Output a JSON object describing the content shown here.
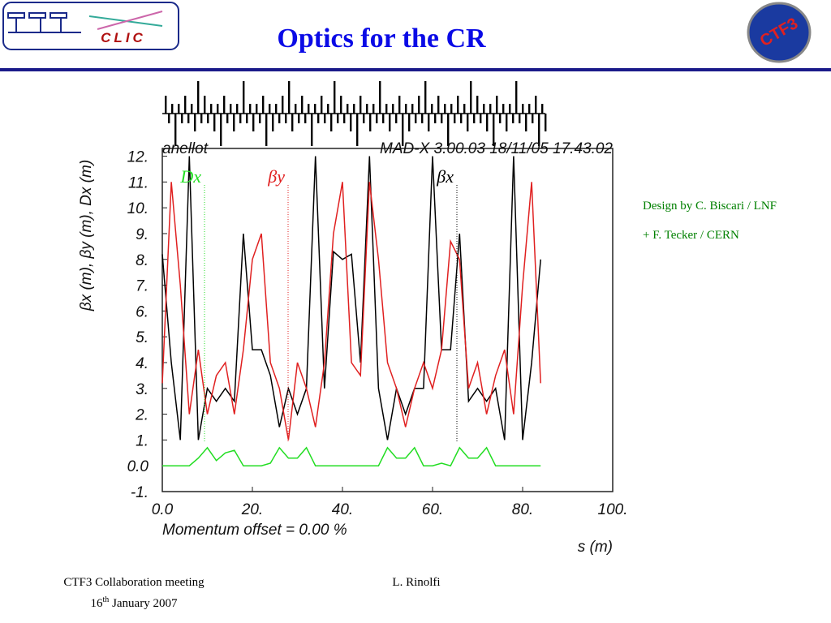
{
  "header": {
    "title": "Optics for the CR",
    "logo_left": "CLIC",
    "logo_right": "CTF3"
  },
  "notes": [
    "Design by C. Biscari / LNF",
    "+ F. Tecker / CERN"
  ],
  "footer": {
    "meeting": "CTF3 Collaboration meeting",
    "date_day": "16",
    "date_sup": "th",
    "date_rest": " January 2007",
    "author": "L. Rinolfi"
  },
  "chart_data": {
    "type": "line",
    "title": "anellot",
    "subtitle": "MAD-X 3.00.03  18/11/05 17.43.02",
    "ylabel": "βx (m), βy (m), Dx (m)",
    "xlabel": "s (m)",
    "annotation": "Momentum offset =   0.00 %",
    "x": [
      0,
      2,
      4,
      6,
      8,
      10,
      12,
      14,
      16,
      18,
      20,
      22,
      24,
      26,
      28,
      30,
      32,
      34,
      36,
      38,
      40,
      42,
      44,
      46,
      48,
      50,
      52,
      54,
      56,
      58,
      60,
      62,
      64,
      66,
      68,
      70,
      72,
      74,
      76,
      78,
      80,
      82,
      84
    ],
    "series": [
      {
        "name": "βx",
        "color": "#000000",
        "values": [
          8.2,
          4,
          1,
          12,
          1,
          3,
          2.5,
          3,
          2.5,
          9,
          4.5,
          4.5,
          3.5,
          1.5,
          3,
          2,
          3,
          12,
          3,
          8.3,
          8,
          8.2,
          4,
          12,
          3,
          1,
          3,
          2,
          3,
          3,
          12,
          4.5,
          4.5,
          9,
          2.5,
          3,
          2.5,
          3,
          1,
          12,
          1,
          4,
          8
        ]
      },
      {
        "name": "βy",
        "color": "#e02020",
        "values": [
          3.2,
          11,
          7,
          2,
          4.5,
          2,
          3.5,
          4,
          2,
          4.5,
          8,
          9,
          4,
          3,
          1,
          4,
          3,
          1.5,
          4,
          9,
          11,
          4,
          3.5,
          11,
          8,
          4,
          3,
          1.5,
          3,
          4,
          3,
          4.5,
          8.7,
          8,
          3,
          4,
          2,
          3.5,
          4.5,
          2,
          7,
          11,
          3.2
        ]
      },
      {
        "name": "Dx",
        "color": "#22dd22",
        "values": [
          0,
          0,
          0,
          0,
          0.3,
          0.7,
          0.2,
          0.5,
          0.6,
          0,
          0,
          0,
          0.1,
          0.7,
          0.3,
          0.3,
          0.7,
          0,
          0,
          0,
          0,
          0,
          0,
          0,
          0,
          0.7,
          0.3,
          0.3,
          0.7,
          0,
          0,
          0.1,
          0,
          0.7,
          0.3,
          0.3,
          0.7,
          0,
          0,
          0,
          0,
          0,
          0
        ]
      }
    ],
    "xlim": [
      0,
      100
    ],
    "ylim": [
      -1,
      12.3
    ],
    "xticks": [
      {
        "value": 0,
        "label": "0.0"
      },
      {
        "value": 20,
        "label": "20."
      },
      {
        "value": 40,
        "label": "40."
      },
      {
        "value": 60,
        "label": "60."
      },
      {
        "value": 80,
        "label": "80."
      },
      {
        "value": 100,
        "label": "100."
      }
    ],
    "yticks": [
      {
        "value": -1,
        "label": "-1."
      },
      {
        "value": 0,
        "label": "0.0"
      },
      {
        "value": 1,
        "label": "1."
      },
      {
        "value": 2,
        "label": "2."
      },
      {
        "value": 3,
        "label": "3."
      },
      {
        "value": 4,
        "label": "4."
      },
      {
        "value": 5,
        "label": "5."
      },
      {
        "value": 6,
        "label": "6."
      },
      {
        "value": 7,
        "label": "7."
      },
      {
        "value": 8,
        "label": "8."
      },
      {
        "value": 9,
        "label": "9."
      },
      {
        "value": 10,
        "label": "10."
      },
      {
        "value": 11,
        "label": "11."
      },
      {
        "value": 12,
        "label": "12."
      }
    ],
    "grid": false
  }
}
